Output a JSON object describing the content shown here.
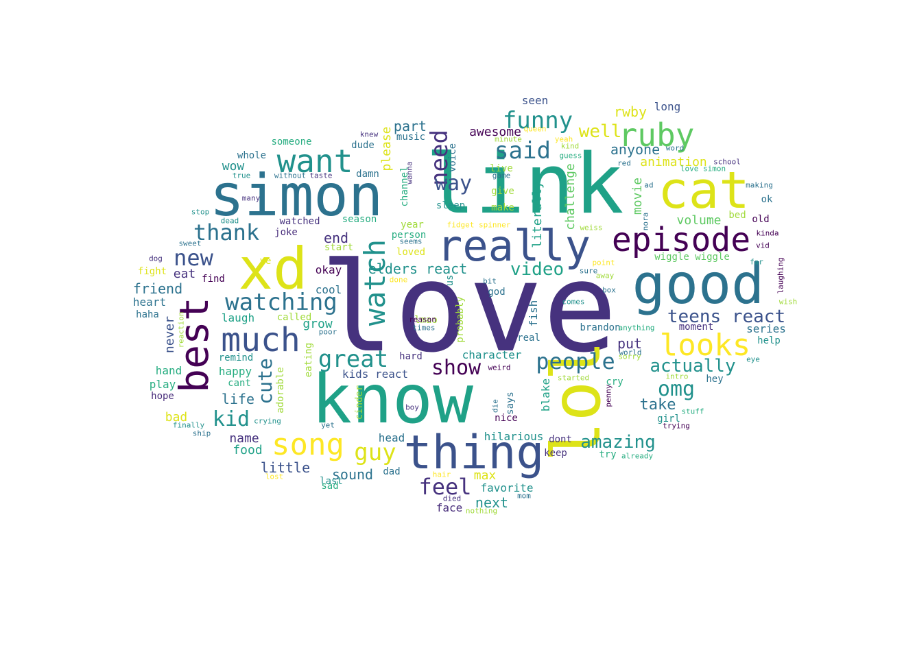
{
  "palette": {
    "p1": "#46327e",
    "p2": "#440154",
    "p3": "#21918c",
    "p4": "#1fa187",
    "p5": "#2c728e",
    "p6": "#3b528b",
    "p7": "#dde318",
    "p8": "#fde725",
    "p9": "#5ec962",
    "p10": "#7ad151",
    "p11": "#31688e",
    "p12": "#27ad81",
    "p13": "#a0da39",
    "p14": "#472c7a"
  },
  "words": [
    {
      "text": "love",
      "c": "p1"
    },
    {
      "text": "link",
      "c": "p4"
    },
    {
      "text": "know",
      "c": "p4"
    },
    {
      "text": "lol",
      "c": "p7"
    },
    {
      "text": "simon",
      "c": "p5"
    },
    {
      "text": "xd",
      "c": "p7"
    },
    {
      "text": "good",
      "c": "p5"
    },
    {
      "text": "cat",
      "c": "p7"
    },
    {
      "text": "thing",
      "c": "p6"
    },
    {
      "text": "really",
      "c": "p6"
    },
    {
      "text": "episode",
      "c": "p2"
    },
    {
      "text": "best",
      "c": "p2"
    },
    {
      "text": "much",
      "c": "p6"
    },
    {
      "text": "ruby",
      "c": "p9"
    },
    {
      "text": "want",
      "c": "p3"
    },
    {
      "text": "watch",
      "c": "p3"
    },
    {
      "text": "looks",
      "c": "p8"
    },
    {
      "text": "song",
      "c": "p8"
    },
    {
      "text": "watching",
      "c": "p5"
    },
    {
      "text": "great",
      "c": "p3"
    },
    {
      "text": "need",
      "c": "p1"
    },
    {
      "text": "said",
      "c": "p5"
    },
    {
      "text": "funny",
      "c": "p3"
    },
    {
      "text": "thank",
      "c": "p5"
    },
    {
      "text": "people",
      "c": "p5"
    },
    {
      "text": "guy",
      "c": "p7"
    },
    {
      "text": "new",
      "c": "p6"
    },
    {
      "text": "feel",
      "c": "p1"
    },
    {
      "text": "way",
      "c": "p6"
    },
    {
      "text": "show",
      "c": "p2"
    },
    {
      "text": "cute",
      "c": "p5"
    },
    {
      "text": "teens react",
      "c": "p6"
    },
    {
      "text": "actually",
      "c": "p3"
    },
    {
      "text": "kid",
      "c": "p3"
    },
    {
      "text": "omg",
      "c": "p3"
    },
    {
      "text": "amazing",
      "c": "p3"
    },
    {
      "text": "video",
      "c": "p4"
    },
    {
      "text": "well",
      "c": "p7"
    },
    {
      "text": "elders react",
      "c": "p3"
    },
    {
      "text": "take",
      "c": "p5"
    },
    {
      "text": "anyone",
      "c": "p5"
    },
    {
      "text": "wow",
      "c": "p3"
    },
    {
      "text": "friend",
      "c": "p5"
    },
    {
      "text": "rwby",
      "c": "p7"
    },
    {
      "text": "animation",
      "c": "p7"
    },
    {
      "text": "sound",
      "c": "p5"
    },
    {
      "text": "put",
      "c": "p1"
    },
    {
      "text": "end",
      "c": "p1"
    },
    {
      "text": "part",
      "c": "p5"
    },
    {
      "text": "little",
      "c": "p6"
    },
    {
      "text": "max",
      "c": "p7"
    },
    {
      "text": "next",
      "c": "p3"
    },
    {
      "text": "please",
      "c": "p7"
    },
    {
      "text": "eat",
      "c": "p1"
    },
    {
      "text": "life",
      "c": "p5"
    },
    {
      "text": "volume",
      "c": "p9"
    },
    {
      "text": "movie",
      "c": "p9"
    },
    {
      "text": "challenge",
      "c": "p9"
    },
    {
      "text": "literally",
      "c": "p4"
    },
    {
      "text": "awesome",
      "c": "p2"
    },
    {
      "text": "never",
      "c": "p6"
    },
    {
      "text": "seen",
      "c": "p6"
    },
    {
      "text": "long",
      "c": "p6"
    },
    {
      "text": "name",
      "c": "p1"
    },
    {
      "text": "food",
      "c": "p4"
    },
    {
      "text": "kids react",
      "c": "p6"
    },
    {
      "text": "series",
      "c": "p5"
    },
    {
      "text": "character",
      "c": "p3"
    },
    {
      "text": "fish",
      "c": "p5"
    },
    {
      "text": "blake",
      "c": "p4"
    },
    {
      "text": "hilarious",
      "c": "p3"
    },
    {
      "text": "favorite",
      "c": "p3"
    },
    {
      "text": "face",
      "c": "p14"
    },
    {
      "text": "head",
      "c": "p5"
    },
    {
      "text": "okay",
      "c": "p2"
    },
    {
      "text": "cool",
      "c": "p5"
    },
    {
      "text": "laugh",
      "c": "p4"
    },
    {
      "text": "grow",
      "c": "p4"
    },
    {
      "text": "bad",
      "c": "p7"
    },
    {
      "text": "play",
      "c": "p12"
    },
    {
      "text": "happy",
      "c": "p12"
    },
    {
      "text": "hand",
      "c": "p12"
    },
    {
      "text": "hope",
      "c": "p14"
    },
    {
      "text": "remind",
      "c": "p3"
    },
    {
      "text": "heart",
      "c": "p5"
    },
    {
      "text": "haha",
      "c": "p5"
    },
    {
      "text": "fight",
      "c": "p7"
    },
    {
      "text": "find",
      "c": "p2"
    },
    {
      "text": "joke",
      "c": "p14"
    },
    {
      "text": "ye",
      "c": "p7"
    },
    {
      "text": "watched",
      "c": "p1"
    },
    {
      "text": "season",
      "c": "p12"
    },
    {
      "text": "someone",
      "c": "p12"
    },
    {
      "text": "whole",
      "c": "p5"
    },
    {
      "text": "dude",
      "c": "p5"
    },
    {
      "text": "damn",
      "c": "p5"
    },
    {
      "text": "music",
      "c": "p5"
    },
    {
      "text": "channel",
      "c": "p12"
    },
    {
      "text": "voice",
      "c": "p5"
    },
    {
      "text": "sleep",
      "c": "p3"
    },
    {
      "text": "year",
      "c": "p13"
    },
    {
      "text": "person",
      "c": "p12"
    },
    {
      "text": "loved",
      "c": "p7"
    },
    {
      "text": "start",
      "c": "p13"
    },
    {
      "text": "lmao",
      "c": "p13"
    },
    {
      "text": "probably",
      "c": "p13"
    },
    {
      "text": "us",
      "c": "p3"
    },
    {
      "text": "god",
      "c": "p5"
    },
    {
      "text": "real",
      "c": "p5"
    },
    {
      "text": "hard",
      "c": "p1"
    },
    {
      "text": "called",
      "c": "p13"
    },
    {
      "text": "eating",
      "c": "p13"
    },
    {
      "text": "cant",
      "c": "p12"
    },
    {
      "text": "adorable",
      "c": "p13"
    },
    {
      "text": "cinder",
      "c": "p13"
    },
    {
      "text": "dad",
      "c": "p5"
    },
    {
      "text": "last",
      "c": "p3"
    },
    {
      "text": "sad",
      "c": "p12"
    },
    {
      "text": "give",
      "c": "p13"
    },
    {
      "text": "make",
      "c": "p13"
    },
    {
      "text": "live",
      "c": "p13"
    },
    {
      "text": "nice",
      "c": "p2"
    },
    {
      "text": "says",
      "c": "p5"
    },
    {
      "text": "dont",
      "c": "p1"
    },
    {
      "text": "keep",
      "c": "p1"
    },
    {
      "text": "try",
      "c": "p12"
    },
    {
      "text": "brandon",
      "c": "p5"
    },
    {
      "text": "moment",
      "c": "p1"
    },
    {
      "text": "cry",
      "c": "p12"
    },
    {
      "text": "girl",
      "c": "p3"
    },
    {
      "text": "hey",
      "c": "p5"
    },
    {
      "text": "help",
      "c": "p3"
    },
    {
      "text": "wiggle wiggle",
      "c": "p9"
    },
    {
      "text": "old",
      "c": "p2"
    },
    {
      "text": "ok",
      "c": "p5"
    },
    {
      "text": "bed",
      "c": "p13"
    },
    {
      "text": "love simon",
      "c": "p12"
    },
    {
      "text": "school",
      "c": "p1"
    },
    {
      "text": "word",
      "c": "p5"
    },
    {
      "text": "red",
      "c": "p5"
    },
    {
      "text": "ad",
      "c": "p5"
    },
    {
      "text": "making",
      "c": "p5"
    },
    {
      "text": "kinda",
      "c": "p2"
    },
    {
      "text": "vid",
      "c": "p2"
    },
    {
      "text": "far",
      "c": "p3"
    },
    {
      "text": "laughing",
      "c": "p2"
    },
    {
      "text": "wish",
      "c": "p13"
    },
    {
      "text": "eye",
      "c": "p3"
    },
    {
      "text": "intro",
      "c": "p13"
    },
    {
      "text": "stuff",
      "c": "p12"
    },
    {
      "text": "trying",
      "c": "p2"
    },
    {
      "text": "penny",
      "c": "p2"
    },
    {
      "text": "already",
      "c": "p12"
    },
    {
      "text": "world",
      "c": "p5"
    },
    {
      "text": "sorry",
      "c": "p13"
    },
    {
      "text": "anything",
      "c": "p12"
    },
    {
      "text": "started",
      "c": "p13"
    },
    {
      "text": "comes",
      "c": "p3"
    },
    {
      "text": "box",
      "c": "p5"
    },
    {
      "text": "sure",
      "c": "p5"
    },
    {
      "text": "away",
      "c": "p13"
    },
    {
      "text": "point",
      "c": "p8"
    },
    {
      "text": "nora",
      "c": "p5"
    },
    {
      "text": "weiss",
      "c": "p13"
    },
    {
      "text": "yeah",
      "c": "p8"
    },
    {
      "text": "kind",
      "c": "p13"
    },
    {
      "text": "guess",
      "c": "p12"
    },
    {
      "text": "queen",
      "c": "p8"
    },
    {
      "text": "minute",
      "c": "p13"
    },
    {
      "text": "knew",
      "c": "p1"
    },
    {
      "text": "wanna",
      "c": "p1"
    },
    {
      "text": "game",
      "c": "p5"
    },
    {
      "text": "fidget spinner",
      "c": "p8"
    },
    {
      "text": "seems",
      "c": "p5"
    },
    {
      "text": "reason",
      "c": "p2"
    },
    {
      "text": "times",
      "c": "p5"
    },
    {
      "text": "poor",
      "c": "p5"
    },
    {
      "text": "done",
      "c": "p8"
    },
    {
      "text": "bit",
      "c": "p5"
    },
    {
      "text": "weird",
      "c": "p2"
    },
    {
      "text": "die",
      "c": "p5"
    },
    {
      "text": "boy",
      "c": "p1"
    },
    {
      "text": "yet",
      "c": "p5"
    },
    {
      "text": "crying",
      "c": "p3"
    },
    {
      "text": "finally",
      "c": "p3"
    },
    {
      "text": "ship",
      "c": "p5"
    },
    {
      "text": "lost",
      "c": "p8"
    },
    {
      "text": "hair",
      "c": "p8"
    },
    {
      "text": "died",
      "c": "p1"
    },
    {
      "text": "mom",
      "c": "p5"
    },
    {
      "text": "nothing",
      "c": "p13"
    },
    {
      "text": "reaction",
      "c": "p13"
    },
    {
      "text": "without",
      "c": "p5"
    },
    {
      "text": "taste",
      "c": "p1"
    },
    {
      "text": "true",
      "c": "p3"
    },
    {
      "text": "many",
      "c": "p1"
    },
    {
      "text": "stop",
      "c": "p3"
    },
    {
      "text": "dead",
      "c": "p3"
    },
    {
      "text": "sweet",
      "c": "p5"
    },
    {
      "text": "dog",
      "c": "p1"
    }
  ]
}
